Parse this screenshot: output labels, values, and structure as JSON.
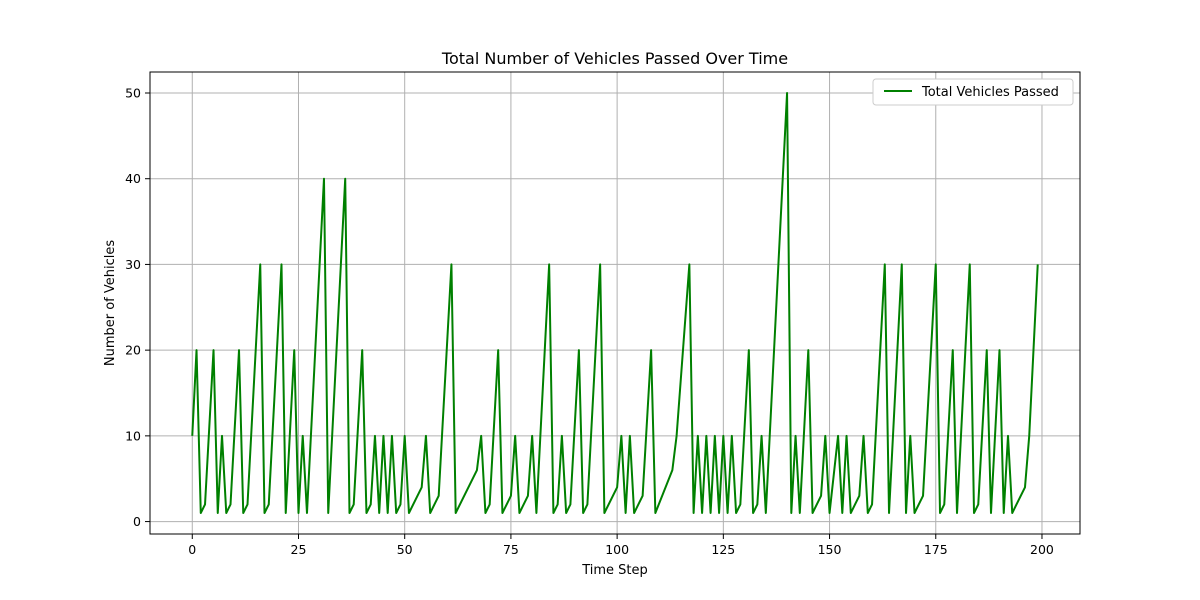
{
  "chart_data": {
    "type": "line",
    "title": "Total Number of Vehicles Passed Over Time",
    "xlabel": "Time Step",
    "ylabel": "Number of Vehicles",
    "xlim": [
      -9.95,
      208.95
    ],
    "ylim": [
      -1.45,
      52.45
    ],
    "xticks": [
      0,
      25,
      50,
      75,
      100,
      125,
      150,
      175,
      200
    ],
    "yticks": [
      0,
      10,
      20,
      30,
      40,
      50
    ],
    "xtick_labels": [
      "0",
      "25",
      "50",
      "75",
      "100",
      "125",
      "150",
      "175",
      "200"
    ],
    "ytick_labels": [
      "0",
      "10",
      "20",
      "30",
      "40",
      "50"
    ],
    "grid": true,
    "legend_position": "top-right",
    "series": [
      {
        "name": "Total Vehicles Passed",
        "color": "#008000",
        "points": [
          [
            0,
            10
          ],
          [
            1,
            20
          ],
          [
            2,
            1
          ],
          [
            3,
            2
          ],
          [
            5,
            20
          ],
          [
            6,
            1
          ],
          [
            7,
            10
          ],
          [
            8,
            1
          ],
          [
            9,
            2
          ],
          [
            11,
            20
          ],
          [
            12,
            1
          ],
          [
            13,
            2
          ],
          [
            16,
            30
          ],
          [
            17,
            1
          ],
          [
            18,
            2
          ],
          [
            21,
            30
          ],
          [
            22,
            1
          ],
          [
            24,
            20
          ],
          [
            25,
            1
          ],
          [
            26,
            10
          ],
          [
            27,
            1
          ],
          [
            31,
            40
          ],
          [
            32,
            1
          ],
          [
            36,
            40
          ],
          [
            37,
            1
          ],
          [
            38,
            2
          ],
          [
            40,
            20
          ],
          [
            41,
            1
          ],
          [
            42,
            2
          ],
          [
            43,
            10
          ],
          [
            44,
            1
          ],
          [
            45,
            10
          ],
          [
            46,
            1
          ],
          [
            47,
            10
          ],
          [
            48,
            1
          ],
          [
            49,
            2
          ],
          [
            50,
            10
          ],
          [
            51,
            1
          ],
          [
            54,
            4
          ],
          [
            55,
            10
          ],
          [
            56,
            1
          ],
          [
            58,
            3
          ],
          [
            61,
            30
          ],
          [
            62,
            1
          ],
          [
            67,
            6
          ],
          [
            68,
            10
          ],
          [
            69,
            1
          ],
          [
            70,
            2
          ],
          [
            72,
            20
          ],
          [
            73,
            1
          ],
          [
            75,
            3
          ],
          [
            76,
            10
          ],
          [
            77,
            1
          ],
          [
            79,
            3
          ],
          [
            80,
            10
          ],
          [
            81,
            1
          ],
          [
            84,
            30
          ],
          [
            85,
            1
          ],
          [
            86,
            2
          ],
          [
            87,
            10
          ],
          [
            88,
            1
          ],
          [
            89,
            2
          ],
          [
            91,
            20
          ],
          [
            92,
            1
          ],
          [
            93,
            2
          ],
          [
            96,
            30
          ],
          [
            97,
            1
          ],
          [
            100,
            4
          ],
          [
            101,
            10
          ],
          [
            102,
            1
          ],
          [
            103,
            10
          ],
          [
            104,
            1
          ],
          [
            106,
            3
          ],
          [
            108,
            20
          ],
          [
            109,
            1
          ],
          [
            113,
            6
          ],
          [
            114,
            10
          ],
          [
            117,
            30
          ],
          [
            118,
            1
          ],
          [
            119,
            10
          ],
          [
            120,
            1
          ],
          [
            121,
            10
          ],
          [
            122,
            1
          ],
          [
            123,
            10
          ],
          [
            124,
            1
          ],
          [
            125,
            10
          ],
          [
            126,
            1
          ],
          [
            127,
            10
          ],
          [
            128,
            1
          ],
          [
            129,
            2
          ],
          [
            131,
            20
          ],
          [
            132,
            1
          ],
          [
            133,
            2
          ],
          [
            134,
            10
          ],
          [
            135,
            1
          ],
          [
            140,
            50
          ],
          [
            141,
            1
          ],
          [
            142,
            10
          ],
          [
            143,
            1
          ],
          [
            145,
            20
          ],
          [
            146,
            1
          ],
          [
            148,
            3
          ],
          [
            149,
            10
          ],
          [
            150,
            1
          ],
          [
            152,
            10
          ],
          [
            153,
            1
          ],
          [
            154,
            10
          ],
          [
            155,
            1
          ],
          [
            157,
            3
          ],
          [
            158,
            10
          ],
          [
            159,
            1
          ],
          [
            160,
            2
          ],
          [
            163,
            30
          ],
          [
            164,
            1
          ],
          [
            167,
            30
          ],
          [
            168,
            1
          ],
          [
            169,
            10
          ],
          [
            170,
            1
          ],
          [
            172,
            3
          ],
          [
            175,
            30
          ],
          [
            176,
            1
          ],
          [
            177,
            2
          ],
          [
            179,
            20
          ],
          [
            180,
            1
          ],
          [
            183,
            30
          ],
          [
            184,
            1
          ],
          [
            185,
            2
          ],
          [
            187,
            20
          ],
          [
            188,
            1
          ],
          [
            190,
            20
          ],
          [
            191,
            1
          ],
          [
            192,
            10
          ],
          [
            193,
            1
          ],
          [
            196,
            4
          ],
          [
            197,
            10
          ],
          [
            199,
            30
          ]
        ]
      }
    ]
  }
}
